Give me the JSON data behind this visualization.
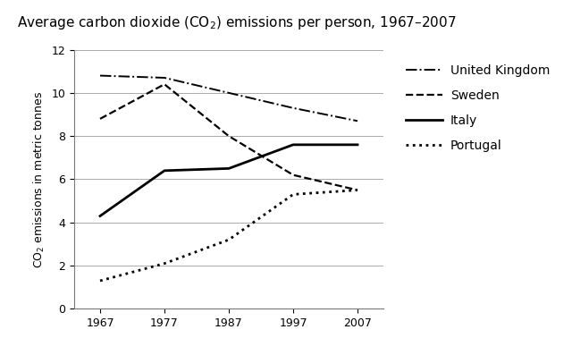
{
  "title": "Average carbon dioxide (CO₂) emissions per person, 1967–2007",
  "ylabel": "CO₂ emissions in metric tonnes",
  "years": [
    1967,
    1977,
    1987,
    1997,
    2007
  ],
  "series": [
    {
      "label": "United Kingdom",
      "values": [
        10.8,
        10.7,
        10.0,
        9.3,
        8.7
      ],
      "linestyle": "-.",
      "linewidth": 1.4,
      "color": "#000000"
    },
    {
      "label": "Sweden",
      "values": [
        8.8,
        10.4,
        8.0,
        6.2,
        5.5
      ],
      "linestyle": "--",
      "linewidth": 1.6,
      "color": "#000000"
    },
    {
      "label": "Italy",
      "values": [
        4.3,
        6.4,
        6.5,
        7.6,
        7.6
      ],
      "linestyle": "-",
      "linewidth": 2.0,
      "color": "#000000"
    },
    {
      "label": "Portugal",
      "values": [
        1.3,
        2.1,
        3.2,
        5.3,
        5.5
      ],
      "linestyle": ":",
      "linewidth": 2.0,
      "color": "#000000"
    }
  ],
  "xlim": [
    1963,
    2011
  ],
  "ylim": [
    0,
    12
  ],
  "yticks": [
    0,
    2,
    4,
    6,
    8,
    10,
    12
  ],
  "xticks": [
    1967,
    1977,
    1987,
    1997,
    2007
  ],
  "background_color": "#ffffff",
  "title_fontsize": 11,
  "axis_fontsize": 9,
  "legend_fontsize": 10,
  "grid_color": "#aaaaaa",
  "grid_linewidth": 0.7
}
